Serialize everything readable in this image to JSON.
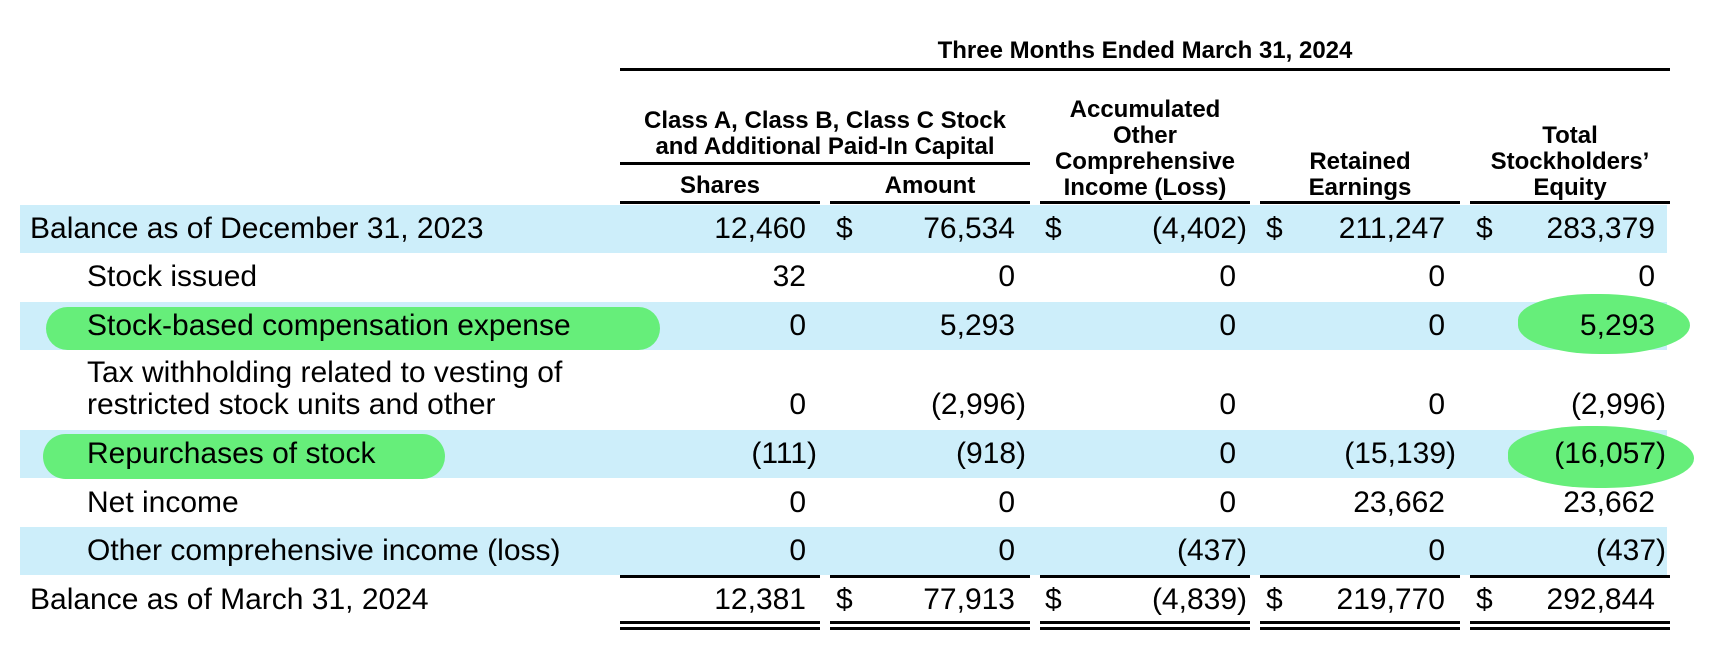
{
  "header": {
    "period_title": "Three Months Ended March 31, 2024",
    "group_title_line1": "Class A, Class B, Class C Stock",
    "group_title_line2": "and Additional Paid-In Capital",
    "col_shares": "Shares",
    "col_amount": "Amount",
    "col_aoci_line1": "Accumulated",
    "col_aoci_line2": "Other",
    "col_aoci_line3": "Comprehensive",
    "col_aoci_line4": "Income (Loss)",
    "col_re_line1": "Retained",
    "col_re_line2": "Earnings",
    "col_tse_line1": "Total",
    "col_tse_line2": "Stockholders’",
    "col_tse_line3": "Equity"
  },
  "currency_symbol": "$",
  "highlight_color": "#66ee7a",
  "row_shade_color": "#cdeefa",
  "rows": [
    {
      "label": "Balance as of December 31, 2023",
      "shares": "12,460",
      "amount": "76,534",
      "aoci": "(4,402)",
      "retained": "211,247",
      "total": "283,379"
    },
    {
      "label": "Stock issued",
      "shares": "32",
      "amount": "0",
      "aoci": "0",
      "retained": "0",
      "total": "0"
    },
    {
      "label": "Stock-based compensation expense",
      "shares": "0",
      "amount": "5,293",
      "aoci": "0",
      "retained": "0",
      "total": "5,293"
    },
    {
      "label_line1": "Tax withholding related to vesting of",
      "label_line2": "restricted stock units and other",
      "shares": "0",
      "amount": "(2,996)",
      "aoci": "0",
      "retained": "0",
      "total": "(2,996)"
    },
    {
      "label": "Repurchases of stock",
      "shares": "(111)",
      "amount": "(918)",
      "aoci": "0",
      "retained": "(15,139)",
      "total": "(16,057)"
    },
    {
      "label": "Net income",
      "shares": "0",
      "amount": "0",
      "aoci": "0",
      "retained": "23,662",
      "total": "23,662"
    },
    {
      "label": "Other comprehensive income (loss)",
      "shares": "0",
      "amount": "0",
      "aoci": "(437)",
      "retained": "0",
      "total": "(437)"
    },
    {
      "label": "Balance as of March 31, 2024",
      "shares": "12,381",
      "amount": "77,913",
      "aoci": "(4,839)",
      "retained": "219,770",
      "total": "292,844"
    }
  ]
}
